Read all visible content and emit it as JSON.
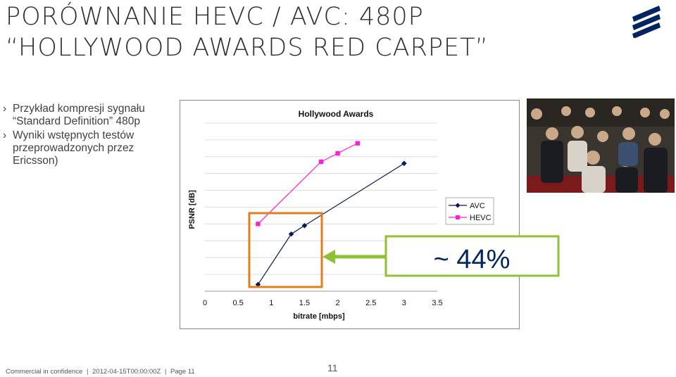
{
  "slide": {
    "title_line1": "Porównanie HEVC / AVC: 480p",
    "title_line2": "“Hollywood Awards Red Carpet”",
    "bullets": [
      "Przykład  kompresji sygnału “Standard Definition” 480p",
      "Wyniki wstępnych testów przeprowadzonych przez Ericsson)"
    ],
    "bullet_mark": "›",
    "callout_text": "~ 44%",
    "footer": {
      "confidentiality": "Commercial in confidence",
      "date": "2012-04-15T00:00:00Z",
      "page_label": "Page 11",
      "separator": "|"
    },
    "page_number": "11",
    "colors": {
      "title": "#2d2d3a",
      "avc": "#0a1a5a",
      "hevc": "#ff1fd2",
      "highlight_box": "#e07f1a",
      "callout": "#8fc134",
      "logo": "#002561"
    },
    "logo_icon": "ericsson-logo-icon",
    "photo_icon": "red-carpet-photo"
  },
  "chart_data": {
    "type": "line",
    "title": "Hollywood Awards",
    "xlabel": "bitrate [mbps]",
    "ylabel": "PSNR [dB]",
    "xlim": [
      0,
      3.5
    ],
    "x_ticks": [
      "0",
      "0.5",
      "1",
      "1.5",
      "2",
      "2.5",
      "3",
      "3.5"
    ],
    "ylim": [
      0,
      10
    ],
    "grid": "horizontal",
    "legend_position": "right",
    "series": [
      {
        "name": "AVC",
        "marker": "diamond",
        "points": [
          [
            0.8,
            0.4
          ],
          [
            1.3,
            3.4
          ],
          [
            1.5,
            3.9
          ],
          [
            3.0,
            7.6
          ]
        ]
      },
      {
        "name": "HEVC",
        "marker": "square",
        "points": [
          [
            0.8,
            4.0
          ],
          [
            1.75,
            7.7
          ],
          [
            2.0,
            8.2
          ],
          [
            2.3,
            8.8
          ]
        ]
      }
    ]
  }
}
